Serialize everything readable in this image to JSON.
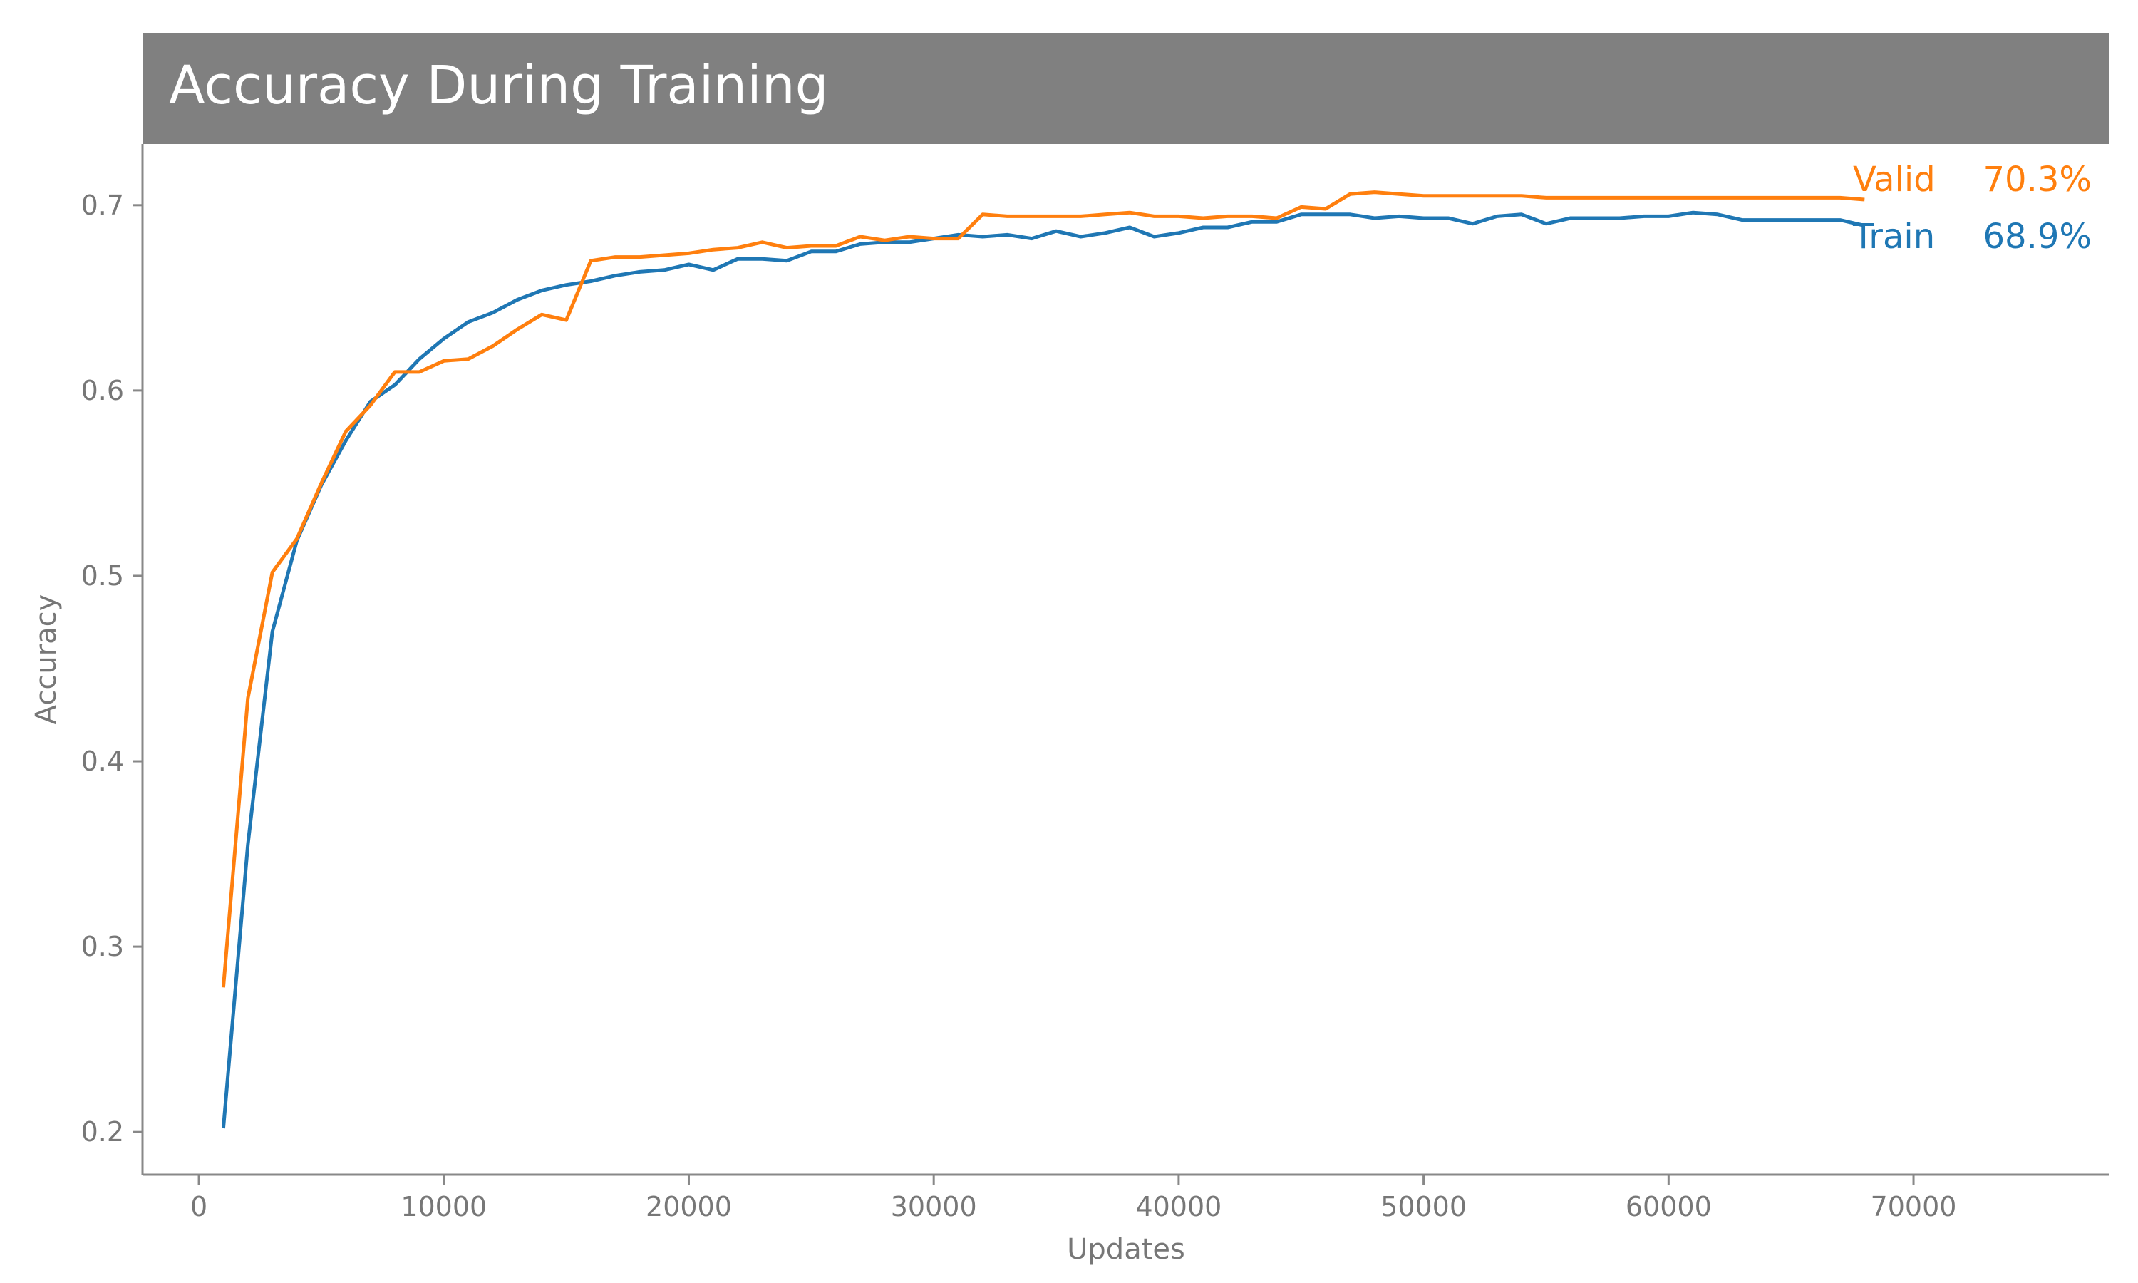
{
  "chart_data": {
    "type": "line",
    "title": "Accuracy During Training",
    "xlabel": "Updates",
    "ylabel": "Accuracy",
    "xlim": [
      -2300,
      78000
    ],
    "ylim": [
      0.177,
      0.733
    ],
    "xticks": [
      0,
      10000,
      20000,
      30000,
      40000,
      50000,
      60000,
      70000
    ],
    "xtick_labels": [
      "0",
      "10000",
      "20000",
      "30000",
      "40000",
      "50000",
      "60000",
      "70000"
    ],
    "yticks": [
      0.2,
      0.3,
      0.4,
      0.5,
      0.6,
      0.7
    ],
    "ytick_labels": [
      "0.2",
      "0.3",
      "0.4",
      "0.5",
      "0.6",
      "0.7"
    ],
    "grid": false,
    "legend": "none",
    "colors": {
      "title_banner": "#808080",
      "axis": "#888888",
      "tick_text": "#777777"
    },
    "x": [
      1000,
      2000,
      3000,
      4000,
      5000,
      6000,
      7000,
      8000,
      9000,
      10000,
      11000,
      12000,
      13000,
      14000,
      15000,
      16000,
      17000,
      18000,
      19000,
      20000,
      21000,
      22000,
      23000,
      24000,
      25000,
      26000,
      27000,
      28000,
      29000,
      30000,
      31000,
      32000,
      33000,
      34000,
      35000,
      36000,
      37000,
      38000,
      39000,
      40000,
      41000,
      42000,
      43000,
      44000,
      45000,
      46000,
      47000,
      48000,
      49000,
      50000,
      51000,
      52000,
      53000,
      54000,
      55000,
      56000,
      57000,
      58000,
      59000,
      60000,
      61000,
      62000,
      63000,
      64000,
      65000,
      66000,
      67000,
      68000
    ],
    "series": [
      {
        "name": "Train",
        "color": "#1f77b4",
        "final_label": "68.9%",
        "values": [
          0.202,
          0.355,
          0.47,
          0.519,
          0.549,
          0.573,
          0.594,
          0.603,
          0.617,
          0.628,
          0.637,
          0.642,
          0.649,
          0.654,
          0.657,
          0.659,
          0.662,
          0.664,
          0.665,
          0.668,
          0.665,
          0.671,
          0.671,
          0.67,
          0.675,
          0.675,
          0.679,
          0.68,
          0.68,
          0.682,
          0.684,
          0.683,
          0.684,
          0.682,
          0.686,
          0.683,
          0.685,
          0.688,
          0.683,
          0.685,
          0.688,
          0.688,
          0.691,
          0.691,
          0.695,
          0.695,
          0.695,
          0.693,
          0.694,
          0.693,
          0.693,
          0.69,
          0.694,
          0.695,
          0.69,
          0.693,
          0.693,
          0.693,
          0.694,
          0.694,
          0.696,
          0.695,
          0.692,
          0.692,
          0.692,
          0.692,
          0.692,
          0.689
        ]
      },
      {
        "name": "Valid",
        "color": "#ff7f0e",
        "final_label": "70.3%",
        "values": [
          0.278,
          0.434,
          0.502,
          0.52,
          0.55,
          0.578,
          0.592,
          0.61,
          0.61,
          0.616,
          0.617,
          0.624,
          0.633,
          0.641,
          0.638,
          0.67,
          0.672,
          0.672,
          0.673,
          0.674,
          0.676,
          0.677,
          0.68,
          0.677,
          0.678,
          0.678,
          0.683,
          0.681,
          0.683,
          0.682,
          0.682,
          0.695,
          0.694,
          0.694,
          0.694,
          0.694,
          0.695,
          0.696,
          0.694,
          0.694,
          0.693,
          0.694,
          0.694,
          0.693,
          0.699,
          0.698,
          0.706,
          0.707,
          0.706,
          0.705,
          0.705,
          0.705,
          0.705,
          0.705,
          0.704,
          0.704,
          0.704,
          0.704,
          0.704,
          0.704,
          0.704,
          0.704,
          0.704,
          0.704,
          0.704,
          0.704,
          0.704,
          0.703
        ]
      }
    ]
  }
}
